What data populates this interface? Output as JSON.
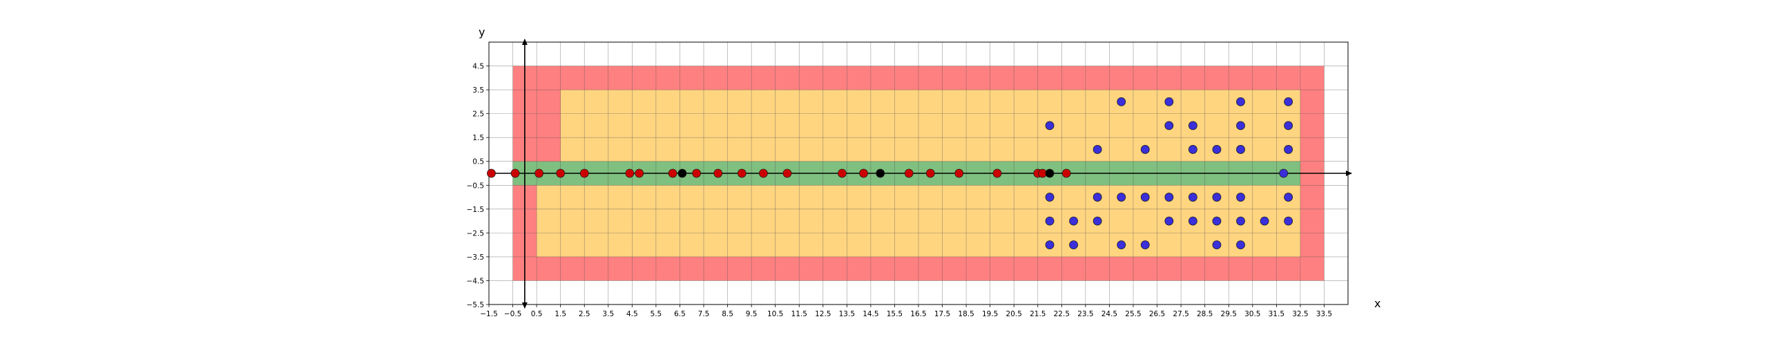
{
  "chart_data": {
    "type": "scatter",
    "title": "",
    "xlabel": "x",
    "ylabel": "y",
    "xlim": [
      -1.5,
      34.5
    ],
    "ylim": [
      -5.5,
      5.5
    ],
    "grid": true,
    "x_ticks": [
      "-1.5",
      "-0.5",
      "0.5",
      "1.5",
      "2.5",
      "3.5",
      "4.5",
      "5.5",
      "6.5",
      "7.5",
      "8.5",
      "9.5",
      "10.5",
      "11.5",
      "12.5",
      "13.5",
      "14.5",
      "15.5",
      "16.5",
      "17.5",
      "18.5",
      "19.5",
      "20.5",
      "21.5",
      "22.5",
      "23.5",
      "24.5",
      "25.5",
      "26.5",
      "27.5",
      "28.5",
      "29.5",
      "30.5",
      "31.5",
      "32.5",
      "33.5"
    ],
    "y_ticks": [
      "4.5",
      "3.5",
      "2.5",
      "1.5",
      "0.5",
      "-0.5",
      "-1.5",
      "-2.5",
      "-3.5",
      "-4.5",
      "-5.5"
    ],
    "regions": [
      {
        "name": "outer",
        "color": "#ff8080",
        "polygon": [
          [
            -0.5,
            -4.5
          ],
          [
            -0.5,
            4.5
          ],
          [
            33.5,
            4.5
          ],
          [
            33.5,
            -4.5
          ]
        ]
      },
      {
        "name": "middle",
        "color": "#ffd580",
        "polygon": [
          [
            0.5,
            -3.5
          ],
          [
            0.5,
            -0.5
          ],
          [
            1.5,
            -0.5
          ],
          [
            1.5,
            3.5
          ],
          [
            32.5,
            3.5
          ],
          [
            32.5,
            -3.5
          ]
        ]
      },
      {
        "name": "inner",
        "color": "#7fbf7f",
        "polygon": [
          [
            -0.5,
            -0.5
          ],
          [
            -0.5,
            0.5
          ],
          [
            32.5,
            0.5
          ],
          [
            32.5,
            -0.5
          ]
        ]
      }
    ],
    "series": [
      {
        "color": "#cc0000",
        "points": [
          [
            -1.4,
            0
          ],
          [
            -0.4,
            0
          ],
          [
            0.6,
            0
          ],
          [
            1.5,
            0
          ],
          [
            2.5,
            0
          ],
          [
            4.4,
            0
          ],
          [
            4.8,
            0
          ],
          [
            6.2,
            0
          ],
          [
            7.2,
            0
          ],
          [
            8.1,
            0
          ],
          [
            9.1,
            0
          ],
          [
            10.0,
            0
          ],
          [
            11.0,
            0
          ],
          [
            13.3,
            0
          ],
          [
            14.2,
            0
          ],
          [
            16.1,
            0
          ],
          [
            17.0,
            0
          ],
          [
            18.2,
            0
          ],
          [
            19.8,
            0
          ],
          [
            21.5,
            0
          ],
          [
            21.7,
            0
          ],
          [
            22.7,
            0
          ]
        ]
      },
      {
        "color": "#000000",
        "points": [
          [
            6.6,
            0
          ],
          [
            14.9,
            0
          ],
          [
            22.0,
            0
          ]
        ]
      },
      {
        "color": "#3a2fd9",
        "points": [
          [
            25,
            3
          ],
          [
            27,
            3
          ],
          [
            30,
            3
          ],
          [
            32,
            3
          ],
          [
            22,
            2
          ],
          [
            27,
            2
          ],
          [
            28,
            2
          ],
          [
            30,
            2
          ],
          [
            32,
            2
          ],
          [
            24,
            1
          ],
          [
            26,
            1
          ],
          [
            28,
            1
          ],
          [
            29,
            1
          ],
          [
            30,
            1
          ],
          [
            32,
            1
          ],
          [
            31.8,
            0
          ],
          [
            22,
            -1
          ],
          [
            24,
            -1
          ],
          [
            25,
            -1
          ],
          [
            26,
            -1
          ],
          [
            27,
            -1
          ],
          [
            28,
            -1
          ],
          [
            29,
            -1
          ],
          [
            30,
            -1
          ],
          [
            32,
            -1
          ],
          [
            22,
            -2
          ],
          [
            23,
            -2
          ],
          [
            24,
            -2
          ],
          [
            27,
            -2
          ],
          [
            28,
            -2
          ],
          [
            29,
            -2
          ],
          [
            30,
            -2
          ],
          [
            31,
            -2
          ],
          [
            32,
            -2
          ],
          [
            22,
            -3
          ],
          [
            23,
            -3
          ],
          [
            25,
            -3
          ],
          [
            26,
            -3
          ],
          [
            29,
            -3
          ],
          [
            30,
            -3
          ]
        ]
      }
    ]
  }
}
